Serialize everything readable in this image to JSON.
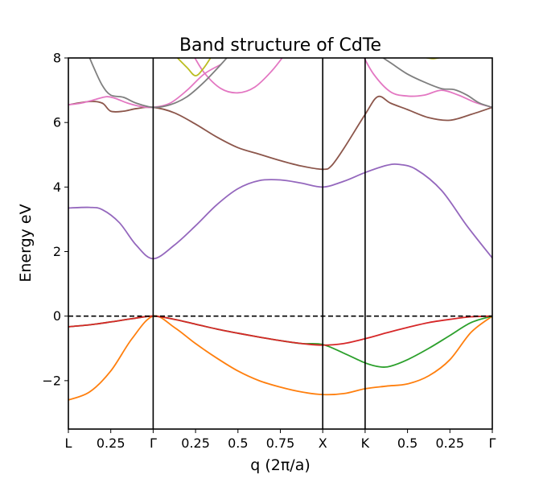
{
  "chart_data": {
    "type": "line",
    "title": "Band structure of CdTe",
    "xlabel": "q (2π/a)",
    "ylabel": "Energy eV",
    "xlim": [
      0,
      5
    ],
    "ylim": [
      -3.5,
      8
    ],
    "grid": false,
    "legend": "none",
    "x_ticks": [
      {
        "x": 0,
        "label": "L"
      },
      {
        "x": 0.5,
        "label": "0.25"
      },
      {
        "x": 1.0,
        "label": "Γ"
      },
      {
        "x": 1.5,
        "label": "0.25"
      },
      {
        "x": 2.0,
        "label": "0.5"
      },
      {
        "x": 2.5,
        "label": "0.75"
      },
      {
        "x": 3.0,
        "label": "X"
      },
      {
        "x": 3.5,
        "label": "K"
      },
      {
        "x": 4.0,
        "label": "0.5"
      },
      {
        "x": 4.5,
        "label": "0.25"
      },
      {
        "x": 5.0,
        "label": "Γ"
      }
    ],
    "y_ticks": [
      {
        "y": -2,
        "label": "−2"
      },
      {
        "y": 0,
        "label": "0"
      },
      {
        "y": 2,
        "label": "2"
      },
      {
        "y": 4,
        "label": "4"
      },
      {
        "y": 6,
        "label": "6"
      },
      {
        "y": 8,
        "label": "8"
      }
    ],
    "high_symmetry_x": [
      1.0,
      3.0,
      3.5
    ],
    "fermi_level": 0,
    "series": [
      {
        "color": "#ff7f0e",
        "points": [
          [
            0,
            -2.6
          ],
          [
            0.25,
            -2.35
          ],
          [
            0.5,
            -1.7
          ],
          [
            0.75,
            -0.7
          ],
          [
            1.0,
            0
          ],
          [
            1.25,
            -0.35
          ],
          [
            1.5,
            -0.85
          ],
          [
            1.75,
            -1.3
          ],
          [
            2.0,
            -1.7
          ],
          [
            2.25,
            -2.0
          ],
          [
            2.5,
            -2.2
          ],
          [
            2.75,
            -2.35
          ],
          [
            3.0,
            -2.43
          ],
          [
            3.25,
            -2.4
          ],
          [
            3.5,
            -2.25
          ],
          [
            3.75,
            -2.17
          ],
          [
            4.0,
            -2.1
          ],
          [
            4.25,
            -1.85
          ],
          [
            4.5,
            -1.35
          ],
          [
            4.75,
            -0.5
          ],
          [
            5.0,
            0
          ]
        ]
      },
      {
        "color": "#2ca02c",
        "points": [
          [
            0,
            -0.33
          ],
          [
            0.25,
            -0.27
          ],
          [
            0.5,
            -0.18
          ],
          [
            0.75,
            -0.08
          ],
          [
            1.0,
            0
          ],
          [
            1.25,
            -0.1
          ],
          [
            1.5,
            -0.25
          ],
          [
            1.75,
            -0.4
          ],
          [
            2.0,
            -0.53
          ],
          [
            2.25,
            -0.65
          ],
          [
            2.5,
            -0.76
          ],
          [
            2.75,
            -0.85
          ],
          [
            3.0,
            -0.88
          ],
          [
            3.25,
            -1.15
          ],
          [
            3.5,
            -1.45
          ],
          [
            3.67,
            -1.57
          ],
          [
            3.8,
            -1.55
          ],
          [
            4.0,
            -1.35
          ],
          [
            4.25,
            -1.0
          ],
          [
            4.5,
            -0.6
          ],
          [
            4.75,
            -0.2
          ],
          [
            5.0,
            0
          ]
        ]
      },
      {
        "color": "#d62728",
        "points": [
          [
            0,
            -0.33
          ],
          [
            0.25,
            -0.27
          ],
          [
            0.5,
            -0.18
          ],
          [
            0.75,
            -0.08
          ],
          [
            1.0,
            0
          ],
          [
            1.25,
            -0.1
          ],
          [
            1.5,
            -0.25
          ],
          [
            1.75,
            -0.4
          ],
          [
            2.0,
            -0.53
          ],
          [
            2.25,
            -0.65
          ],
          [
            2.5,
            -0.76
          ],
          [
            2.75,
            -0.85
          ],
          [
            3.0,
            -0.9
          ],
          [
            3.25,
            -0.85
          ],
          [
            3.5,
            -0.7
          ],
          [
            3.75,
            -0.52
          ],
          [
            4.0,
            -0.35
          ],
          [
            4.25,
            -0.2
          ],
          [
            4.5,
            -0.1
          ],
          [
            4.75,
            -0.02
          ],
          [
            5.0,
            0
          ]
        ]
      },
      {
        "color": "#9467bd",
        "points": [
          [
            0,
            3.35
          ],
          [
            0.25,
            3.37
          ],
          [
            0.4,
            3.3
          ],
          [
            0.6,
            2.9
          ],
          [
            0.8,
            2.2
          ],
          [
            1.0,
            1.78
          ],
          [
            1.25,
            2.2
          ],
          [
            1.5,
            2.8
          ],
          [
            1.75,
            3.45
          ],
          [
            2.0,
            3.95
          ],
          [
            2.25,
            4.2
          ],
          [
            2.5,
            4.22
          ],
          [
            2.75,
            4.12
          ],
          [
            3.0,
            4.0
          ],
          [
            3.25,
            4.18
          ],
          [
            3.5,
            4.45
          ],
          [
            3.75,
            4.67
          ],
          [
            3.9,
            4.7
          ],
          [
            4.1,
            4.55
          ],
          [
            4.4,
            3.9
          ],
          [
            4.7,
            2.8
          ],
          [
            5.0,
            1.8
          ]
        ]
      },
      {
        "color": "#8c564b",
        "points": [
          [
            0,
            6.55
          ],
          [
            0.25,
            6.65
          ],
          [
            0.4,
            6.6
          ],
          [
            0.5,
            6.35
          ],
          [
            0.65,
            6.35
          ],
          [
            0.8,
            6.43
          ],
          [
            1.0,
            6.47
          ],
          [
            1.25,
            6.3
          ],
          [
            1.5,
            5.95
          ],
          [
            1.75,
            5.55
          ],
          [
            2.0,
            5.22
          ],
          [
            2.25,
            5.02
          ],
          [
            2.5,
            4.82
          ],
          [
            2.75,
            4.65
          ],
          [
            3.0,
            4.55
          ],
          [
            3.1,
            4.65
          ],
          [
            3.25,
            5.2
          ],
          [
            3.5,
            6.25
          ],
          [
            3.65,
            6.8
          ],
          [
            3.8,
            6.6
          ],
          [
            4.0,
            6.4
          ],
          [
            4.25,
            6.15
          ],
          [
            4.5,
            6.07
          ],
          [
            4.75,
            6.25
          ],
          [
            5.0,
            6.47
          ]
        ]
      },
      {
        "color": "#e377c2",
        "points": [
          [
            0,
            6.55
          ],
          [
            0.15,
            6.6
          ],
          [
            0.3,
            6.7
          ],
          [
            0.45,
            6.8
          ],
          [
            0.55,
            6.75
          ],
          [
            0.7,
            6.6
          ],
          [
            0.85,
            6.5
          ],
          [
            1.0,
            6.47
          ],
          [
            1.2,
            6.6
          ],
          [
            1.4,
            7.0
          ],
          [
            1.6,
            7.5
          ],
          [
            1.8,
            7.8
          ]
        ]
      },
      {
        "color": "#e377c2",
        "points": [
          [
            1.45,
            8.2
          ],
          [
            1.6,
            7.55
          ],
          [
            1.8,
            7.05
          ],
          [
            2.0,
            6.92
          ],
          [
            2.2,
            7.1
          ],
          [
            2.4,
            7.6
          ],
          [
            2.55,
            8.1
          ]
        ]
      },
      {
        "color": "#e377c2",
        "points": [
          [
            3.45,
            8.2
          ],
          [
            3.6,
            7.5
          ],
          [
            3.8,
            6.95
          ],
          [
            4.0,
            6.82
          ],
          [
            4.2,
            6.85
          ],
          [
            4.4,
            7.0
          ],
          [
            4.6,
            6.85
          ],
          [
            4.8,
            6.62
          ],
          [
            5.0,
            6.47
          ]
        ]
      },
      {
        "color": "#7f7f7f",
        "points": [
          [
            0.22,
            8.2
          ],
          [
            0.3,
            7.7
          ],
          [
            0.4,
            7.15
          ],
          [
            0.5,
            6.85
          ],
          [
            0.65,
            6.78
          ],
          [
            0.8,
            6.6
          ],
          [
            1.0,
            6.47
          ],
          [
            1.2,
            6.55
          ],
          [
            1.4,
            6.8
          ],
          [
            1.6,
            7.25
          ],
          [
            1.8,
            7.8
          ],
          [
            1.9,
            8.1
          ]
        ]
      },
      {
        "color": "#7f7f7f",
        "points": [
          [
            3.6,
            8.2
          ],
          [
            3.8,
            7.85
          ],
          [
            4.0,
            7.5
          ],
          [
            4.2,
            7.25
          ],
          [
            4.4,
            7.05
          ],
          [
            4.55,
            7.02
          ],
          [
            4.7,
            6.85
          ],
          [
            4.85,
            6.6
          ],
          [
            5.0,
            6.47
          ]
        ]
      },
      {
        "color": "#bcbd22",
        "points": [
          [
            1.25,
            8.1
          ],
          [
            1.4,
            7.7
          ],
          [
            1.5,
            7.45
          ],
          [
            1.6,
            7.7
          ],
          [
            1.7,
            8.1
          ]
        ]
      },
      {
        "color": "#bcbd22",
        "points": [
          [
            4.15,
            8.05
          ],
          [
            4.3,
            7.98
          ],
          [
            4.45,
            8.05
          ]
        ]
      }
    ]
  }
}
